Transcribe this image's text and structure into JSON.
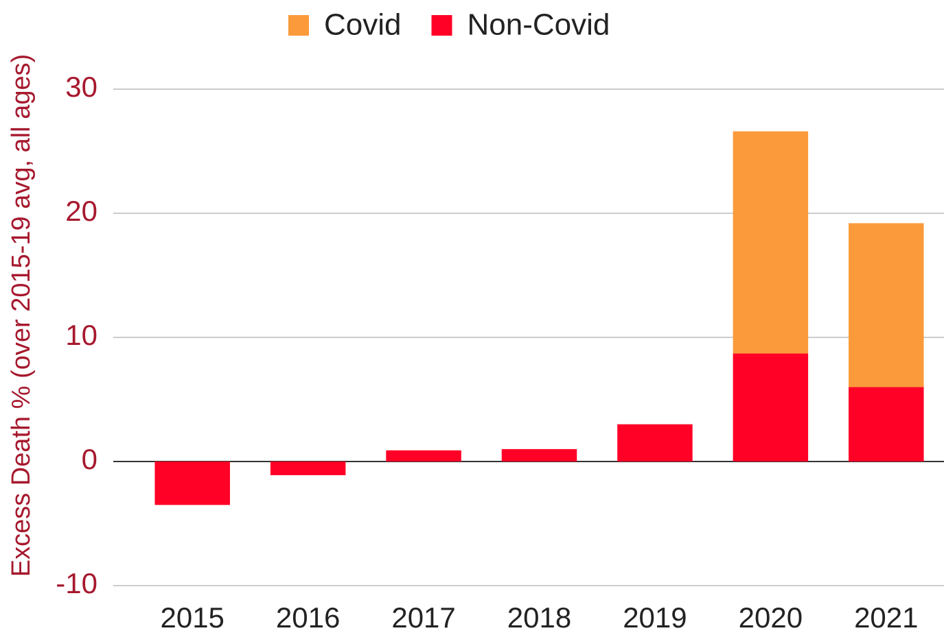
{
  "chart_data": {
    "type": "stacked_bar",
    "y_label": "Excess Death % (over 2015-19 avg, all ages)",
    "categories": [
      "2015",
      "2016",
      "2017",
      "2018",
      "2019",
      "2020",
      "2021"
    ],
    "series": [
      {
        "name": "Covid",
        "color": "#fb9a3b",
        "values": [
          null,
          null,
          null,
          null,
          null,
          17.9,
          13.2
        ]
      },
      {
        "name": "Non-Covid",
        "color": "#ff0026",
        "values": [
          -3.5,
          -1.1,
          0.9,
          1.0,
          3.0,
          8.7,
          6.0
        ]
      }
    ],
    "ylim": [
      -10,
      30
    ],
    "yticks": [
      -10,
      0,
      10,
      20,
      30
    ],
    "grid": true,
    "legend": "top"
  }
}
